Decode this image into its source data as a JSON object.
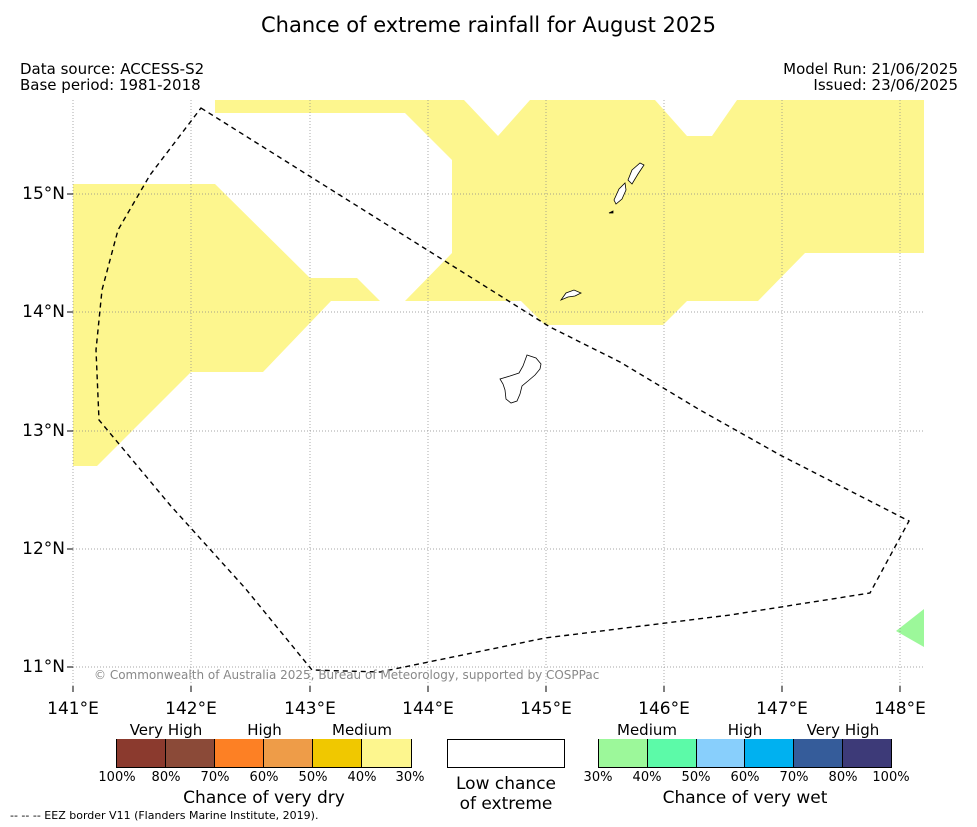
{
  "title": "Chance of extreme rainfall for August 2025",
  "info": {
    "data_source": "Data source: ACCESS-S2",
    "base_period": "Base period: 1981-2018",
    "model_run": "Model Run: 21/06/2025",
    "issued": "Issued: 23/06/2025"
  },
  "map": {
    "lat_labels": [
      "15°N",
      "14°N",
      "13°N",
      "12°N",
      "11°N"
    ],
    "lon_labels": [
      "141°E",
      "142°E",
      "143°E",
      "144°E",
      "145°E",
      "146°E",
      "147°E",
      "148°E"
    ],
    "copyright": "© Commonwealth of Australia 2025, Bureau of Meteorology, supported by COSPPac",
    "colors": {
      "medium_dry": "#fdf68e",
      "medium_wet": "#9cf89a",
      "land_outline": "#000000",
      "eez_border": "#000000",
      "grid": "#888888"
    }
  },
  "legend": {
    "dry": {
      "categories": [
        "Very High",
        "High",
        "Medium"
      ],
      "colors": [
        "#8b3a2e",
        "#8b4a38",
        "#fd8024",
        "#ee9c48",
        "#f0c800",
        "#fdf68e"
      ],
      "ticks": [
        "100%",
        "80%",
        "70%",
        "60%",
        "50%",
        "40%",
        "30%"
      ],
      "title": "Chance of very dry"
    },
    "low": {
      "line1": "Low chance",
      "line2": "of extreme"
    },
    "wet": {
      "categories": [
        "Medium",
        "High",
        "Very High"
      ],
      "colors": [
        "#9cf89a",
        "#5cfaa8",
        "#88cffc",
        "#00b1f0",
        "#355c9a",
        "#3d3a78"
      ],
      "ticks": [
        "30%",
        "40%",
        "50%",
        "60%",
        "70%",
        "80%",
        "100%"
      ],
      "title": "Chance of very wet"
    }
  },
  "eez_note": "--  --  -- EEZ border V11 (Flanders Marine Institute, 2019)."
}
